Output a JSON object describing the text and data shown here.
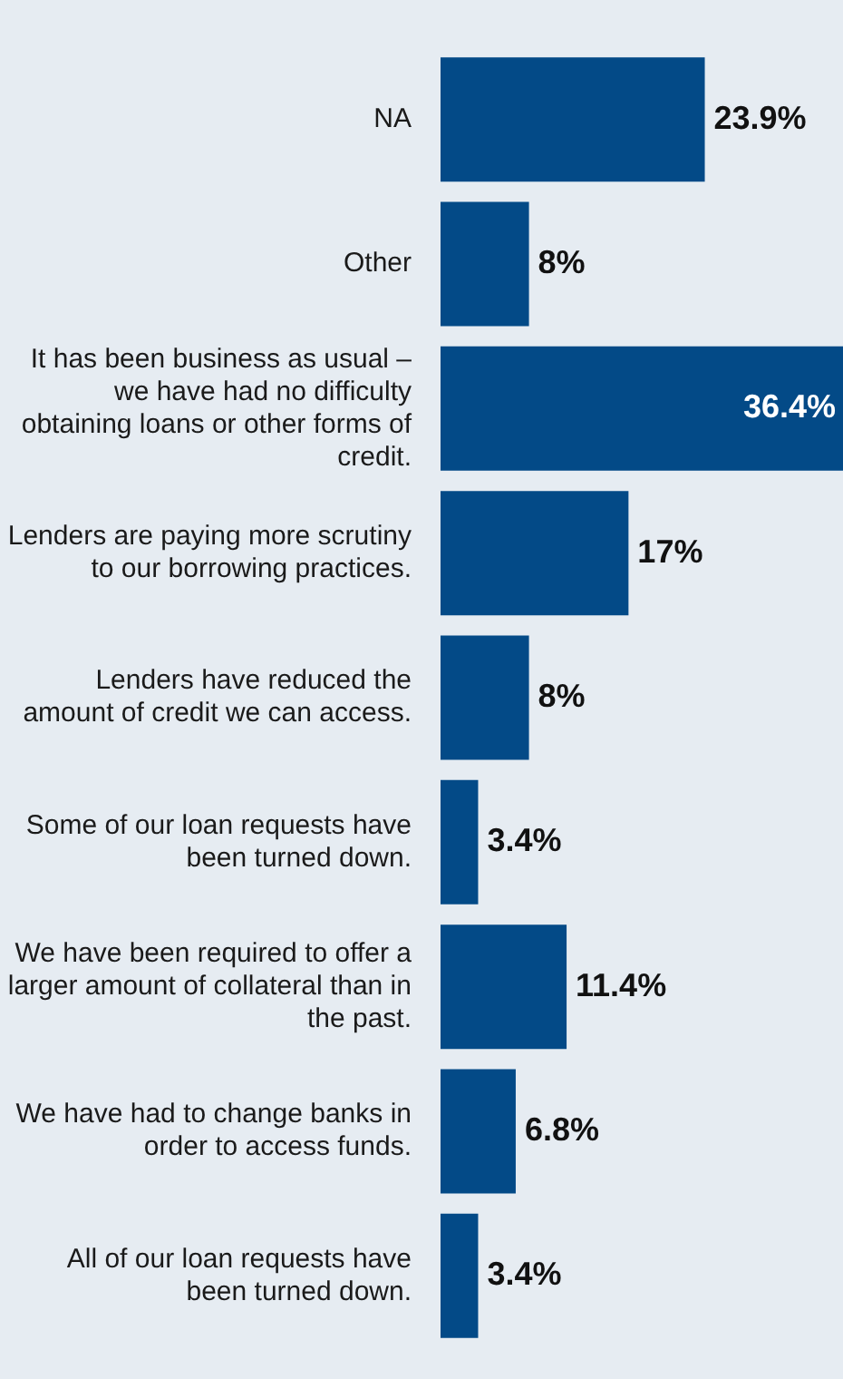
{
  "chart_data": {
    "type": "bar",
    "orientation": "horizontal",
    "categories": [
      "NA",
      "Other",
      "It has been business as usual – we have had no difficulty obtaining loans or other forms of credit.",
      "Lenders are paying more scrutiny to our borrowing practices.",
      "Lenders have reduced the amount of credit we can access.",
      "Some of our loan requests have been turned down.",
      "We have been required to offer a larger amount of collateral than in the past.",
      "We have had to change banks in order to access funds.",
      "All of our loan requests have been turned down."
    ],
    "values": [
      23.9,
      8,
      36.4,
      17,
      8,
      3.4,
      11.4,
      6.8,
      3.4
    ],
    "value_labels": [
      "23.9%",
      "8%",
      "36.4%",
      "17%",
      "8%",
      "3.4%",
      "11.4%",
      "6.8%",
      "3.4%"
    ],
    "color": "#034a87",
    "tick_labels": "y"
  }
}
